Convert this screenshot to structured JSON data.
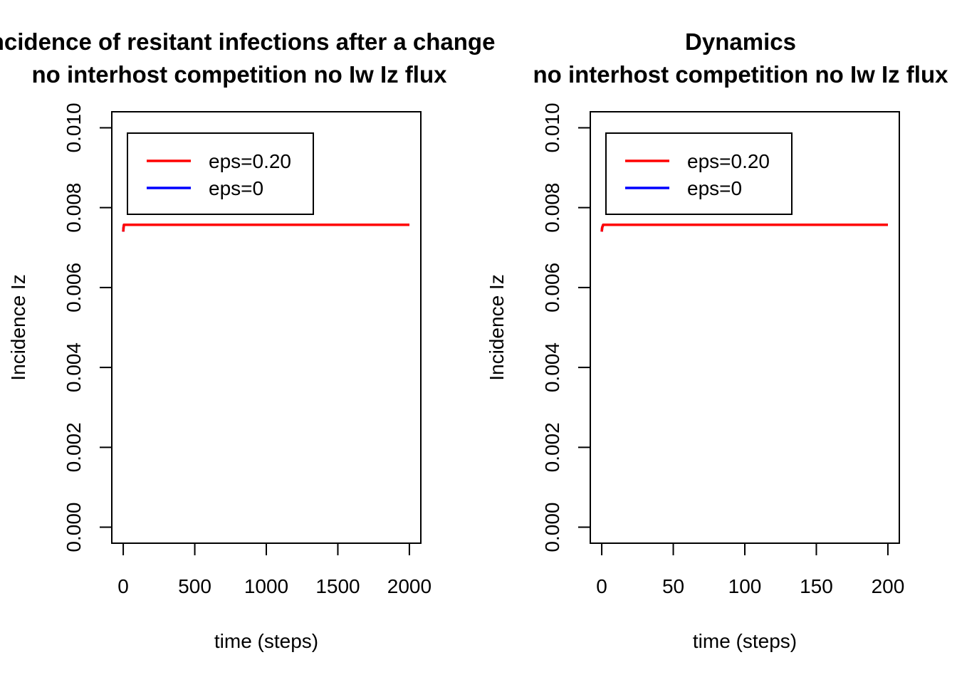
{
  "chart_data": [
    {
      "type": "line",
      "title_line1": "Incidence of resitant infections after a change",
      "title_line2": "no interhost competition no Iw Iz flux",
      "xlabel": "time (steps)",
      "ylabel": "Incidence Iz",
      "xlim": [
        -80,
        2080
      ],
      "ylim": [
        -0.0004,
        0.0104
      ],
      "xticks": [
        0,
        500,
        1000,
        1500,
        2000
      ],
      "xtick_labels": [
        "0",
        "500",
        "1000",
        "1500",
        "2000"
      ],
      "yticks": [
        0,
        0.002,
        0.004,
        0.006,
        0.008,
        0.01
      ],
      "ytick_labels": [
        "0.000",
        "0.002",
        "0.004",
        "0.006",
        "0.008",
        "0.010"
      ],
      "grid": false,
      "legend_position": "top-left",
      "series": [
        {
          "name": "eps=0.20",
          "color": "#ff0000",
          "x": [
            0,
            2,
            5,
            2000
          ],
          "y": [
            0.0074,
            0.0075,
            0.00757,
            0.00757
          ]
        },
        {
          "name": "eps=0",
          "color": "#0000ff",
          "x": [
            0,
            2,
            5,
            2000
          ],
          "y": [
            0.0074,
            0.0075,
            0.00757,
            0.00757
          ]
        }
      ]
    },
    {
      "type": "line",
      "title_line1": "Dynamics",
      "title_line2": "no interhost competition no Iw Iz flux",
      "xlabel": "time (steps)",
      "ylabel": "Incidence Iz",
      "xlim": [
        -8,
        208
      ],
      "ylim": [
        -0.0004,
        0.0104
      ],
      "xticks": [
        0,
        50,
        100,
        150,
        200
      ],
      "xtick_labels": [
        "0",
        "50",
        "100",
        "150",
        "200"
      ],
      "yticks": [
        0,
        0.002,
        0.004,
        0.006,
        0.008,
        0.01
      ],
      "ytick_labels": [
        "0.000",
        "0.002",
        "0.004",
        "0.006",
        "0.008",
        "0.010"
      ],
      "grid": false,
      "legend_position": "top-left",
      "series": [
        {
          "name": "eps=0.20",
          "color": "#ff0000",
          "x": [
            0,
            0.3,
            1,
            200
          ],
          "y": [
            0.0074,
            0.0075,
            0.00757,
            0.00757
          ]
        },
        {
          "name": "eps=0",
          "color": "#0000ff",
          "x": [
            0,
            0.3,
            1,
            200
          ],
          "y": [
            0.0074,
            0.0075,
            0.00757,
            0.00757
          ]
        }
      ]
    }
  ]
}
